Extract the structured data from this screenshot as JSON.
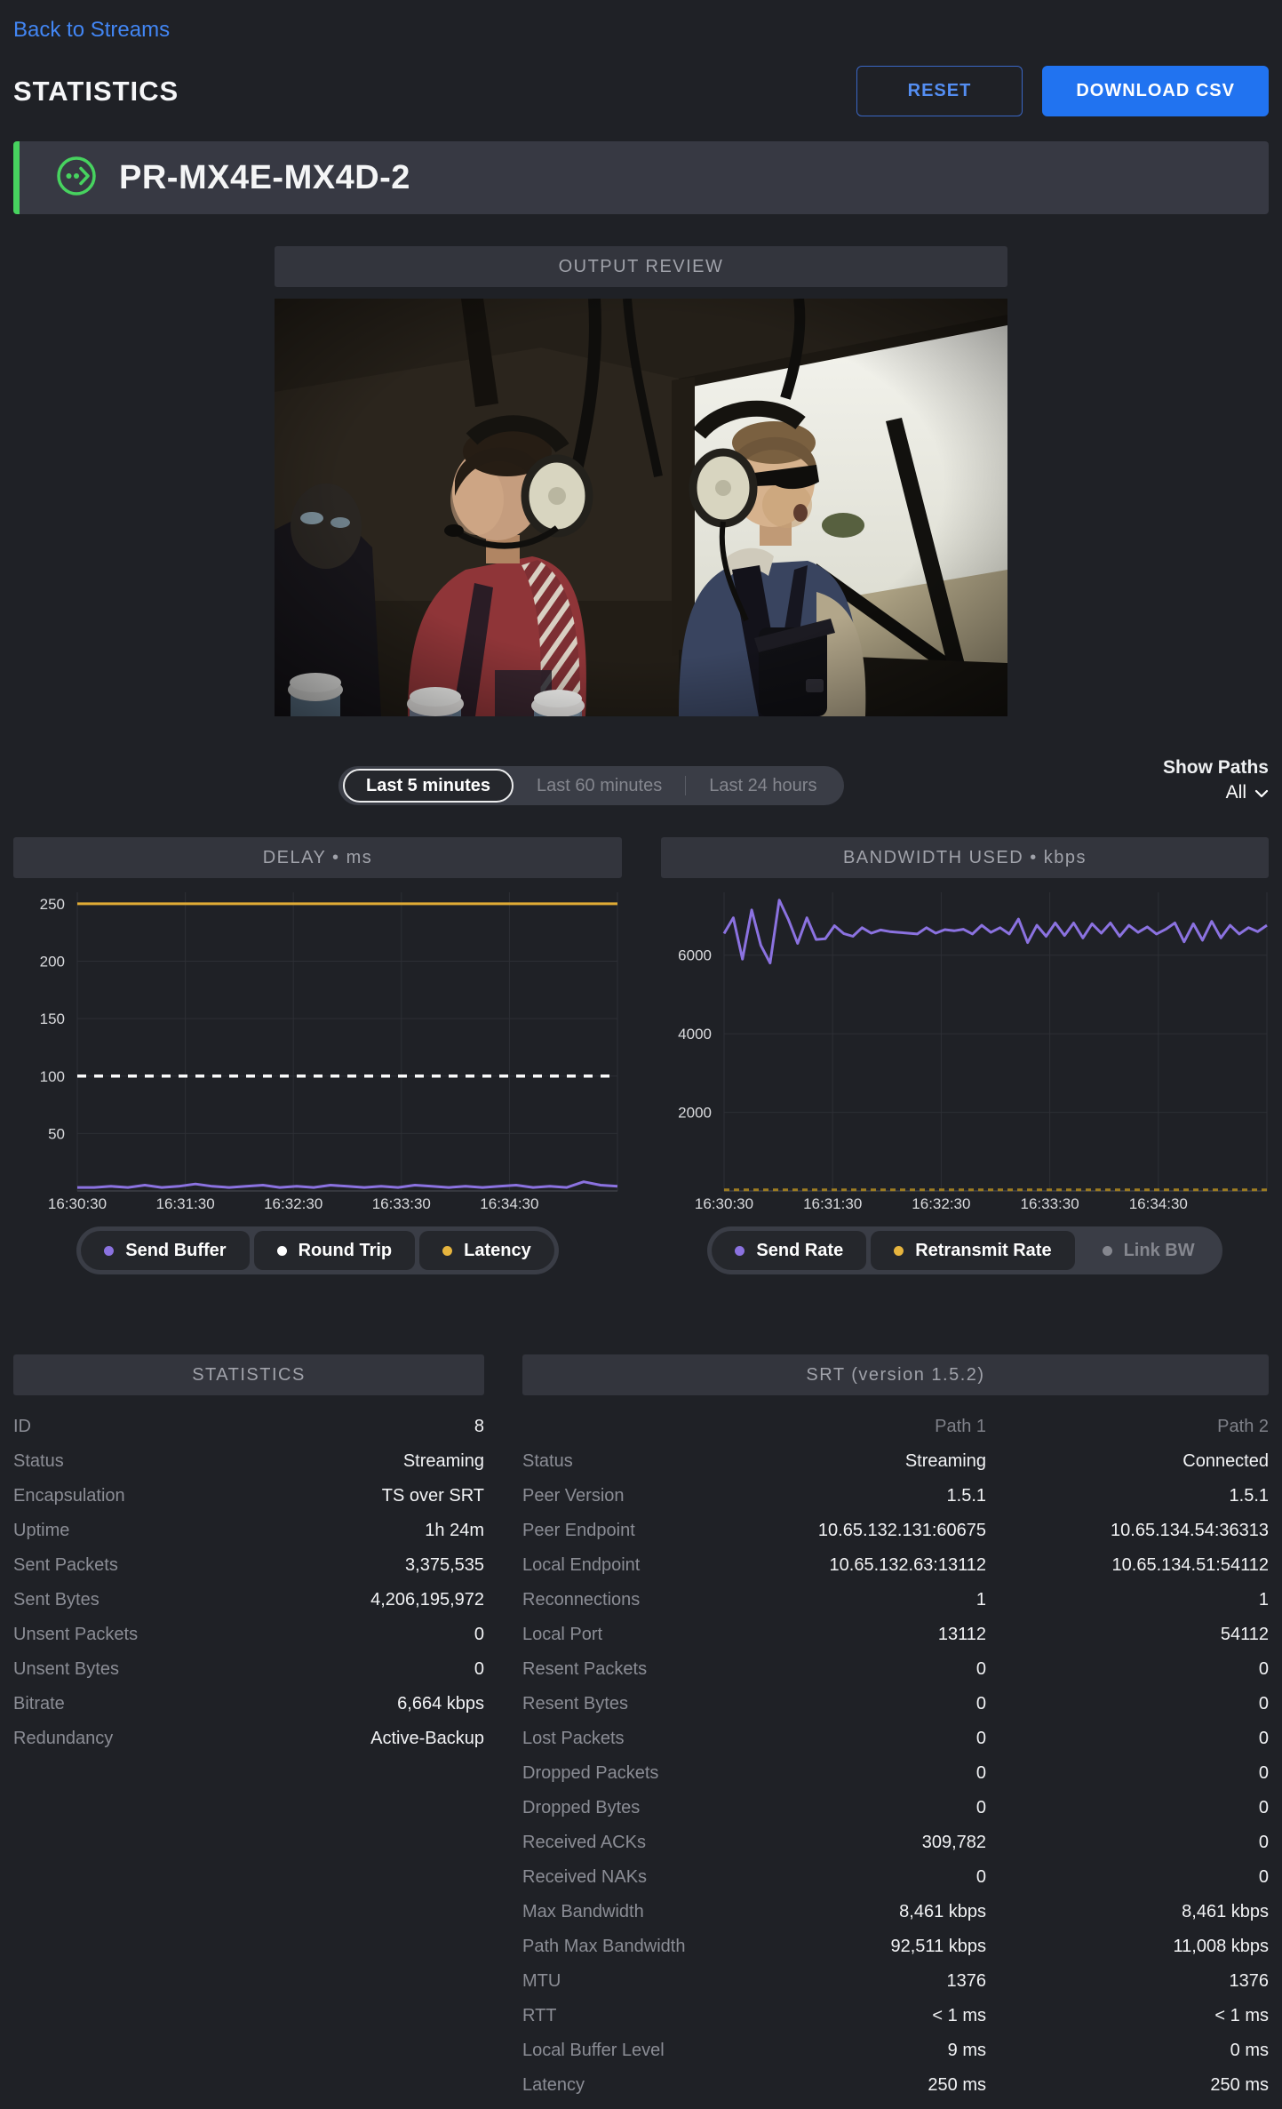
{
  "page": {
    "back_link": "Back to Streams",
    "title": "STATISTICS",
    "reset_button": "RESET",
    "download_button": "DOWNLOAD CSV"
  },
  "stream": {
    "name": "PR-MX4E-MX4D-2",
    "status_icon": "stream-outbound-icon",
    "accent_color": "#47d35f"
  },
  "output_review": {
    "title": "OUTPUT REVIEW"
  },
  "time_range": {
    "options": [
      "Last 5 minutes",
      "Last 60 minutes",
      "Last 24 hours"
    ],
    "selected": "Last 5 minutes"
  },
  "show_paths": {
    "label": "Show Paths",
    "value": "All"
  },
  "chart_data": [
    {
      "type": "line",
      "title": "DELAY • ms",
      "x_ticks": [
        "16:30:30",
        "16:31:30",
        "16:32:30",
        "16:33:30",
        "16:34:30"
      ],
      "y_ticks": [
        50,
        100,
        150,
        200,
        250
      ],
      "ylim": [
        0,
        260
      ],
      "grid": true,
      "series": [
        {
          "name": "Send Buffer",
          "color": "#8b72e0",
          "dash": "solid",
          "width": 3,
          "values": [
            3,
            3,
            4,
            3,
            5,
            3,
            4,
            6,
            4,
            3,
            4,
            5,
            3,
            4,
            3,
            5,
            4,
            3,
            4,
            3,
            5,
            4,
            3,
            4,
            3,
            4,
            5,
            3,
            4,
            3,
            8,
            5,
            4
          ]
        },
        {
          "name": "Round Trip",
          "color": "#fafafa",
          "dash": "10 9",
          "width": 3.5,
          "values": [
            100,
            100
          ]
        },
        {
          "name": "Latency",
          "color": "#e0ab35",
          "dash": "solid",
          "width": 3,
          "values": [
            250,
            250
          ]
        }
      ],
      "legend": [
        {
          "label": "Send Buffer",
          "color": "#8b72e0",
          "active": true
        },
        {
          "label": "Round Trip",
          "color": "#ffffff",
          "active": true
        },
        {
          "label": "Latency",
          "color": "#e6b43e",
          "active": true
        }
      ]
    },
    {
      "type": "line",
      "title": "BANDWIDTH USED • kbps",
      "x_ticks": [
        "16:30:30",
        "16:31:30",
        "16:32:30",
        "16:33:30",
        "16:34:30"
      ],
      "y_ticks": [
        2000,
        4000,
        6000
      ],
      "ylim": [
        0,
        7600
      ],
      "grid": true,
      "series": [
        {
          "name": "Retransmit Rate",
          "color": "#9c7b22",
          "dash": "6 5",
          "width": 3,
          "values": [
            30,
            30
          ]
        },
        {
          "name": "Send Rate",
          "color": "#8b72e0",
          "dash": "solid",
          "width": 3,
          "values": [
            6550,
            6950,
            5900,
            7150,
            6250,
            5800,
            7400,
            6900,
            6300,
            6950,
            6400,
            6420,
            6750,
            6550,
            6480,
            6700,
            6560,
            6640,
            6600,
            6580,
            6560,
            6540,
            6700,
            6560,
            6650,
            6620,
            6660,
            6540,
            6760,
            6580,
            6700,
            6540,
            6920,
            6320,
            6760,
            6480,
            6820,
            6500,
            6820,
            6440,
            6800,
            6560,
            6820,
            6480,
            6760,
            6580,
            6720,
            6540,
            6660,
            6820,
            6340,
            6800,
            6380,
            6860,
            6440,
            6760,
            6540,
            6700,
            6600,
            6760
          ]
        }
      ],
      "legend": [
        {
          "label": "Send Rate",
          "color": "#8b72e0",
          "active": true
        },
        {
          "label": "Retransmit Rate",
          "color": "#e6b43e",
          "active": true
        },
        {
          "label": "Link BW",
          "color": "#85878f",
          "active": false
        }
      ]
    }
  ],
  "statistics_table": {
    "title": "STATISTICS",
    "rows": [
      {
        "label": "ID",
        "value": "8"
      },
      {
        "label": "Status",
        "value": "Streaming"
      },
      {
        "label": "Encapsulation",
        "value": "TS over SRT"
      },
      {
        "label": "Uptime",
        "value": "1h 24m"
      },
      {
        "label": "Sent Packets",
        "value": "3,375,535"
      },
      {
        "label": "Sent Bytes",
        "value": "4,206,195,972"
      },
      {
        "label": "Unsent Packets",
        "value": "0"
      },
      {
        "label": "Unsent Bytes",
        "value": "0"
      },
      {
        "label": "Bitrate",
        "value": "6,664 kbps"
      },
      {
        "label": "Redundancy",
        "value": "Active-Backup"
      }
    ]
  },
  "srt_table": {
    "title": "SRT (version 1.5.2)",
    "columns": [
      "Path 1",
      "Path 2"
    ],
    "rows": [
      {
        "label": "Status",
        "path1": "Streaming",
        "path2": "Connected"
      },
      {
        "label": "Peer Version",
        "path1": "1.5.1",
        "path2": "1.5.1"
      },
      {
        "label": "Peer Endpoint",
        "path1": "10.65.132.131:60675",
        "path2": "10.65.134.54:36313"
      },
      {
        "label": "Local Endpoint",
        "path1": "10.65.132.63:13112",
        "path2": "10.65.134.51:54112"
      },
      {
        "label": "Reconnections",
        "path1": "1",
        "path2": "1"
      },
      {
        "label": "Local Port",
        "path1": "13112",
        "path2": "54112"
      },
      {
        "label": "Resent Packets",
        "path1": "0",
        "path2": "0"
      },
      {
        "label": "Resent Bytes",
        "path1": "0",
        "path2": "0"
      },
      {
        "label": "Lost Packets",
        "path1": "0",
        "path2": "0"
      },
      {
        "label": "Dropped Packets",
        "path1": "0",
        "path2": "0"
      },
      {
        "label": "Dropped Bytes",
        "path1": "0",
        "path2": "0"
      },
      {
        "label": "Received ACKs",
        "path1": "309,782",
        "path2": "0"
      },
      {
        "label": "Received NAKs",
        "path1": "0",
        "path2": "0"
      },
      {
        "label": "Max Bandwidth",
        "path1": "8,461 kbps",
        "path2": "8,461 kbps"
      },
      {
        "label": "Path Max Bandwidth",
        "path1": "92,511 kbps",
        "path2": "11,008 kbps"
      },
      {
        "label": "MTU",
        "path1": "1376",
        "path2": "1376"
      },
      {
        "label": "RTT",
        "path1": "< 1 ms",
        "path2": "< 1 ms"
      },
      {
        "label": "Local Buffer Level",
        "path1": "9 ms",
        "path2": "0 ms"
      },
      {
        "label": "Latency",
        "path1": "250 ms",
        "path2": "250 ms"
      }
    ]
  }
}
